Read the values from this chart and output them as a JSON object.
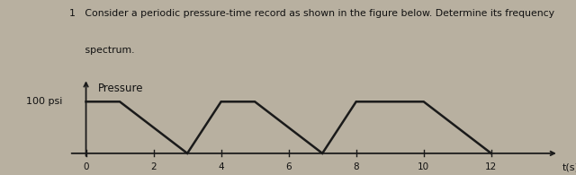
{
  "title_line1": "1   Consider a periodic pressure-time record as shown in the figure below. Determine its frequency",
  "title_line2": "     spectrum.",
  "ylabel": "Pressure",
  "xlabel": "t(s)",
  "y_label_value": "100 psi",
  "xticks": [
    0,
    2,
    4,
    6,
    8,
    10,
    12
  ],
  "xlim": [
    -0.5,
    14.0
  ],
  "ylim": [
    -0.25,
    1.45
  ],
  "wave_x": [
    0,
    1,
    3,
    4,
    5,
    7,
    8,
    10,
    12
  ],
  "wave_y": [
    1,
    1,
    0,
    1,
    1,
    0,
    1,
    1,
    0
  ],
  "line_color": "#1a1a1a",
  "background_color": "#b8b0a0",
  "text_color": "#111111",
  "fig_width": 6.4,
  "fig_height": 1.95,
  "dpi": 100
}
